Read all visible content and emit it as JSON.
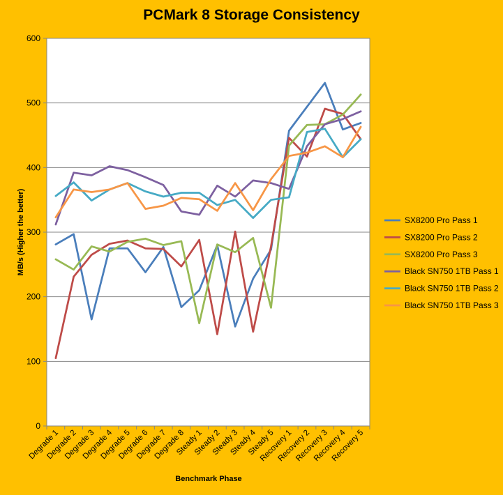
{
  "chart_data": {
    "type": "line",
    "title": "PCMark 8 Storage Consistency",
    "xlabel": "Benchmark Phase",
    "ylabel": "MB/s  (Higher the better)",
    "ylim": [
      0,
      600
    ],
    "yticks": [
      0,
      100,
      200,
      300,
      400,
      500,
      600
    ],
    "grid": true,
    "legend_position": "right",
    "categories": [
      "Degrade 1",
      "Degrade 2",
      "Degrade 3",
      "Degrade 4",
      "Degrade 5",
      "Degrade 6",
      "Degrade 7",
      "Degrade 8",
      "Steady 1",
      "Steady 2",
      "Steady 3",
      "Steady 4",
      "Steady 5",
      "Recovery 1",
      "Recovery 2",
      "Recovery 3",
      "Recovery 4",
      "Recovery 5"
    ],
    "series": [
      {
        "name": "SX8200 Pro Pass 1",
        "color": "#4A7EBB",
        "values": [
          281,
          297,
          165,
          275,
          275,
          238,
          277,
          184,
          210,
          280,
          154,
          228,
          273,
          457,
          494,
          531,
          459,
          469
        ]
      },
      {
        "name": "SX8200 Pro Pass 2",
        "color": "#BE4B48",
        "values": [
          105,
          231,
          265,
          282,
          287,
          275,
          274,
          247,
          288,
          142,
          301,
          146,
          278,
          446,
          417,
          491,
          483,
          444
        ]
      },
      {
        "name": "SX8200 Pro Pass 3",
        "color": "#98B954",
        "values": [
          258,
          242,
          278,
          270,
          285,
          290,
          280,
          286,
          159,
          281,
          269,
          291,
          183,
          434,
          466,
          467,
          482,
          513
        ]
      },
      {
        "name": "Black SN750 1TB Pass 1",
        "color": "#7D60A0",
        "values": [
          312,
          392,
          388,
          402,
          396,
          385,
          373,
          332,
          327,
          372,
          355,
          380,
          376,
          367,
          433,
          467,
          475,
          487
        ]
      },
      {
        "name": "Black SN750 1TB Pass 2",
        "color": "#46AAC5",
        "values": [
          356,
          377,
          349,
          366,
          376,
          363,
          355,
          361,
          361,
          342,
          350,
          322,
          350,
          354,
          455,
          460,
          416,
          444
        ]
      },
      {
        "name": "Black SN750 1TB Pass 3",
        "color": "#F79646",
        "values": [
          323,
          366,
          362,
          366,
          376,
          336,
          341,
          353,
          351,
          333,
          376,
          334,
          382,
          418,
          423,
          433,
          416,
          463
        ]
      }
    ]
  }
}
